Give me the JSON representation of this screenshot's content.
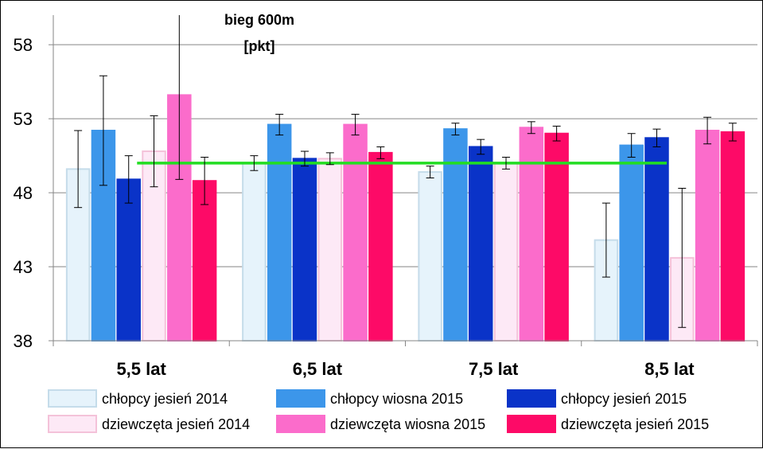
{
  "chart_data": {
    "type": "bar",
    "title_lines": [
      "bieg 600m",
      "[pkt]"
    ],
    "categories": [
      "5,5 lat",
      "6,5 lat",
      "7,5 lat",
      "8,5 lat"
    ],
    "y_ticks": [
      "38",
      "43",
      "48",
      "53",
      "58"
    ],
    "ylim": [
      38,
      60
    ],
    "grid": true,
    "legend_position": "bottom",
    "series": [
      {
        "name": "chłopcy jesień 2014",
        "color": "#e6f3fb",
        "stroke": "#c5dcea",
        "values": [
          49.6,
          50.0,
          49.4,
          44.8
        ],
        "err": [
          2.6,
          0.5,
          0.4,
          2.5
        ]
      },
      {
        "name": "chłopcy wiosna 2015",
        "color": "#3c96ea",
        "stroke": "#3c96ea",
        "values": [
          52.2,
          52.6,
          52.3,
          51.2
        ],
        "err": [
          3.7,
          0.7,
          0.4,
          0.8
        ]
      },
      {
        "name": "chłopcy jesień 2015",
        "color": "#0a33c8",
        "stroke": "#0a33c8",
        "values": [
          48.9,
          50.3,
          51.1,
          51.7
        ],
        "err": [
          1.6,
          0.5,
          0.5,
          0.6
        ]
      },
      {
        "name": "dziewczęta jesień 2014",
        "color": "#fde9f6",
        "stroke": "#f4c2d9",
        "values": [
          50.8,
          50.3,
          50.0,
          43.6
        ],
        "err": [
          2.4,
          0.4,
          0.4,
          4.7
        ]
      },
      {
        "name": "dziewczęta wiosna 2015",
        "color": "#fb6ccb",
        "stroke": "#fb6ccb",
        "values": [
          54.6,
          52.6,
          52.4,
          52.2
        ],
        "err": [
          5.7,
          0.7,
          0.4,
          0.9
        ]
      },
      {
        "name": "dziewczęta jesień 2015",
        "color": "#fd0a67",
        "stroke": "#fd0a67",
        "values": [
          48.8,
          50.7,
          52.0,
          52.1
        ],
        "err": [
          1.6,
          0.4,
          0.5,
          0.6
        ]
      }
    ],
    "reference_line": {
      "value": 50.0,
      "color": "#22dd22"
    },
    "error_bar_color": "#000000",
    "grid_color": "#868686"
  }
}
